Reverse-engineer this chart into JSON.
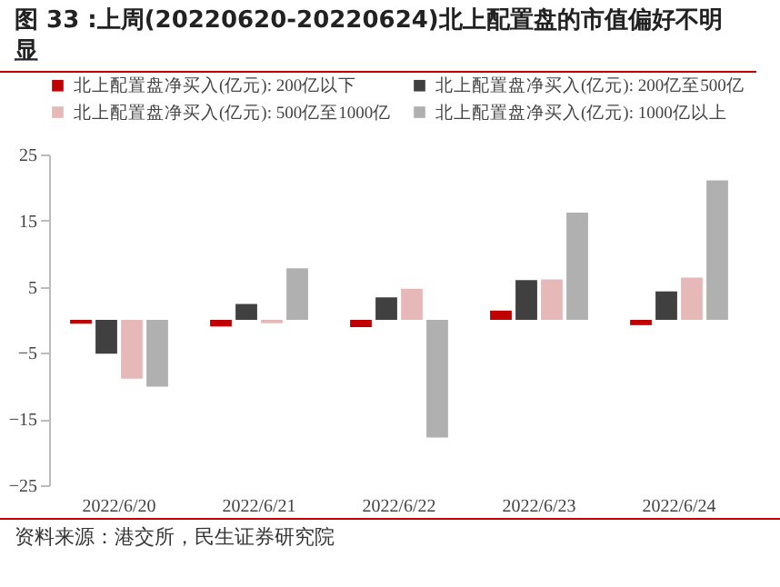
{
  "chart_data": {
    "type": "bar",
    "title": "图 33 :上周(20220620-20220624)北上配置盘的市值偏好不明显",
    "categories": [
      "2022/6/20",
      "2022/6/21",
      "2022/6/22",
      "2022/6/23",
      "2022/6/24"
    ],
    "series": [
      {
        "name": "北上配置盘净买入(亿元): 200亿以下",
        "color": "#c00000",
        "values": [
          -0.6,
          -1.0,
          -1.1,
          1.4,
          -0.8
        ]
      },
      {
        "name": "北上配置盘净买入(亿元): 200亿至500亿",
        "color": "#404040",
        "values": [
          -5.1,
          2.4,
          3.4,
          6.0,
          4.3
        ]
      },
      {
        "name": "北上配置盘净买入(亿元): 500亿至1000亿",
        "color": "#e6b9b8",
        "values": [
          -8.9,
          -0.5,
          4.7,
          6.1,
          6.4
        ]
      },
      {
        "name": "北上配置盘净买入(亿元): 1000亿以上",
        "color": "#b0b0b0",
        "values": [
          -10.1,
          7.8,
          -17.8,
          16.2,
          21.1
        ]
      }
    ],
    "ylim": [
      -25,
      25
    ],
    "yticks": [
      -25,
      -15,
      -5,
      5,
      15,
      25
    ],
    "grid": false,
    "legend": "top",
    "annotations": [
      "资料来源：港交所，民生证券研究院"
    ]
  }
}
